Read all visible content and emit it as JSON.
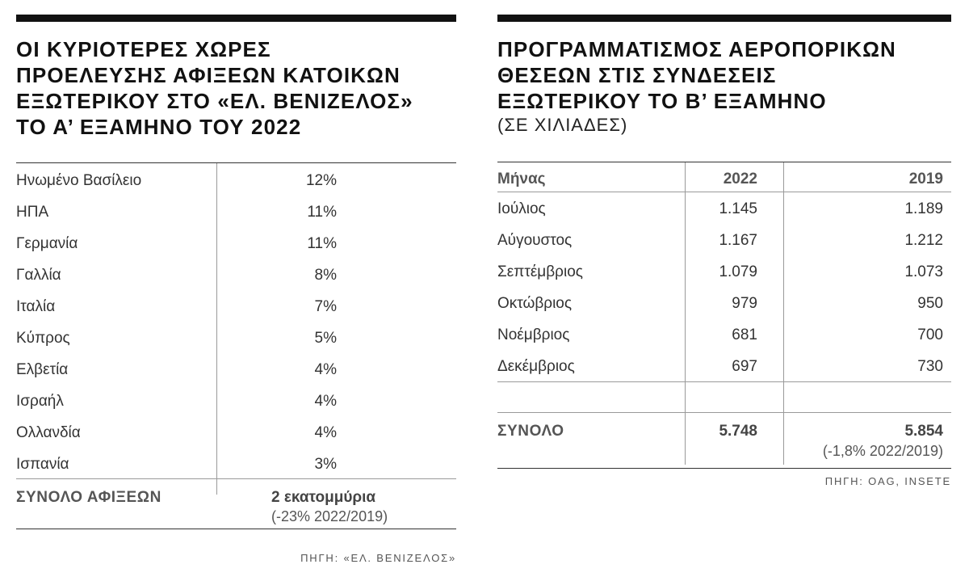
{
  "left": {
    "title_lines": [
      "ΟΙ ΚΥΡΙΟΤΕΡΕΣ ΧΩΡΕΣ",
      "ΠΡΟΕΛΕΥΣΗΣ ΑΦΙΞΕΩΝ ΚΑΤΟΙΚΩΝ",
      "ΕΞΩΤΕΡΙΚΟΥ ΣΤΟ «ΕΛ. ΒΕΝΙΖΕΛΟΣ»",
      "ΤΟ Α’ ΕΞΑΜΗΝΟ ΤΟΥ 2022"
    ],
    "rows": [
      {
        "country": "Ηνωμένο Βασίλειο",
        "share": "12%"
      },
      {
        "country": "ΗΠΑ",
        "share": "11%"
      },
      {
        "country": "Γερμανία",
        "share": "11%"
      },
      {
        "country": "Γαλλία",
        "share": "8%"
      },
      {
        "country": "Ιταλία",
        "share": "7%"
      },
      {
        "country": "Κύπρος",
        "share": "5%"
      },
      {
        "country": "Ελβετία",
        "share": "4%"
      },
      {
        "country": "Ισραήλ",
        "share": "4%"
      },
      {
        "country": "Ολλανδία",
        "share": "4%"
      },
      {
        "country": "Ισπανία",
        "share": "3%"
      }
    ],
    "total_label": "ΣΥΝΟΛΟ ΑΦΙΞΕΩΝ",
    "total_value": "2 εκατομμύρια",
    "total_change": "(-23% 2022/2019)",
    "source": "ΠΗΓΗ: «ΕΛ. ΒΕΝΙΖΕΛΟΣ»"
  },
  "right": {
    "title_lines": [
      "ΠΡΟΓΡΑΜΜΑΤΙΣΜΟΣ ΑΕΡΟΠΟΡΙΚΩΝ",
      "ΘΕΣΕΩΝ ΣΤΙΣ ΣΥΝΔΕΣΕΙΣ",
      "ΕΞΩΤΕΡΙΚΟΥ ΤΟ Β’ ΕΞΑΜΗΝΟ"
    ],
    "subtitle": "(ΣΕ ΧΙΛΙΑΔΕΣ)",
    "headers": {
      "month": "Μήνας",
      "y2022": "2022",
      "y2019": "2019"
    },
    "rows": [
      {
        "month": "Ιούλιος",
        "y2022": "1.145",
        "y2019": "1.189"
      },
      {
        "month": "Αύγουστος",
        "y2022": "1.167",
        "y2019": "1.212"
      },
      {
        "month": "Σεπτέμβριος",
        "y2022": "1.079",
        "y2019": "1.073"
      },
      {
        "month": "Οκτώβριος",
        "y2022": "979",
        "y2019": "950"
      },
      {
        "month": "Νοέμβριος",
        "y2022": "681",
        "y2019": "700"
      },
      {
        "month": "Δεκέμβριος",
        "y2022": "697",
        "y2019": "730"
      }
    ],
    "total_label": "ΣΥΝΟΛΟ",
    "total_2022": "5.748",
    "total_2019": "5.854",
    "total_change": "(-1,8% 2022/2019)",
    "source": "ΠΗΓΗ: OAG, INSETE"
  }
}
